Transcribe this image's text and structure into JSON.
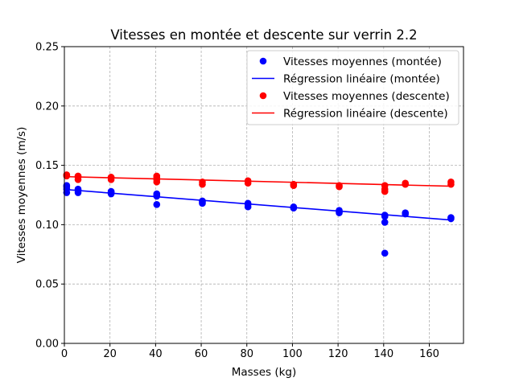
{
  "chart_data": {
    "type": "scatter",
    "title": "Vitesses en montée et descente sur verrin 2.2",
    "xlabel": "Masses (kg)",
    "ylabel": "Vitesses moyennes (m/s)",
    "xlim": [
      0,
      175
    ],
    "ylim": [
      0,
      0.25
    ],
    "xticks": [
      0,
      20,
      40,
      60,
      80,
      100,
      120,
      140,
      160
    ],
    "yticks": [
      0.0,
      0.05,
      0.1,
      0.15,
      0.2,
      0.25
    ],
    "xtick_labels": [
      "0",
      "20",
      "40",
      "60",
      "80",
      "100",
      "120",
      "140",
      "160"
    ],
    "ytick_labels": [
      "0.00",
      "0.05",
      "0.10",
      "0.15",
      "0.20",
      "0.25"
    ],
    "grid": true,
    "legend_position": "top-right",
    "series": [
      {
        "name": "Vitesses moyennes (montée)",
        "kind": "scatter",
        "color": "#0000ff",
        "points": [
          [
            1,
            0.127
          ],
          [
            1,
            0.13
          ],
          [
            1,
            0.132
          ],
          [
            1,
            0.133
          ],
          [
            6,
            0.127
          ],
          [
            6,
            0.129
          ],
          [
            6,
            0.13
          ],
          [
            20.5,
            0.126
          ],
          [
            20.5,
            0.127
          ],
          [
            20.5,
            0.128
          ],
          [
            40.5,
            0.117
          ],
          [
            40.5,
            0.124
          ],
          [
            40.5,
            0.125
          ],
          [
            40.5,
            0.126
          ],
          [
            60.5,
            0.118
          ],
          [
            60.5,
            0.119
          ],
          [
            60.5,
            0.12
          ],
          [
            80.5,
            0.115
          ],
          [
            80.5,
            0.117
          ],
          [
            80.5,
            0.118
          ],
          [
            100.5,
            0.114
          ],
          [
            100.5,
            0.115
          ],
          [
            120.5,
            0.11
          ],
          [
            120.5,
            0.111
          ],
          [
            120.5,
            0.112
          ],
          [
            140.5,
            0.076
          ],
          [
            140.5,
            0.102
          ],
          [
            140.5,
            0.107
          ],
          [
            140.5,
            0.108
          ],
          [
            149.5,
            0.109
          ],
          [
            149.5,
            0.11
          ],
          [
            169.5,
            0.105
          ],
          [
            169.5,
            0.106
          ]
        ]
      },
      {
        "name": "Régression linéaire (montée)",
        "kind": "line",
        "color": "#0000ff",
        "x": [
          0,
          170
        ],
        "y": [
          0.1297,
          0.1039
        ]
      },
      {
        "name": "Vitesses moyennes (descente)",
        "kind": "scatter",
        "color": "#ff0000",
        "points": [
          [
            1,
            0.141
          ],
          [
            1,
            0.142
          ],
          [
            6,
            0.138
          ],
          [
            6,
            0.14
          ],
          [
            6,
            0.141
          ],
          [
            20.5,
            0.138
          ],
          [
            20.5,
            0.14
          ],
          [
            40.5,
            0.136
          ],
          [
            40.5,
            0.138
          ],
          [
            40.5,
            0.14
          ],
          [
            40.5,
            0.141
          ],
          [
            60.5,
            0.134
          ],
          [
            60.5,
            0.136
          ],
          [
            80.5,
            0.135
          ],
          [
            80.5,
            0.137
          ],
          [
            100.5,
            0.133
          ],
          [
            100.5,
            0.134
          ],
          [
            120.5,
            0.132
          ],
          [
            120.5,
            0.133
          ],
          [
            140.5,
            0.128
          ],
          [
            140.5,
            0.13
          ],
          [
            140.5,
            0.133
          ],
          [
            149.5,
            0.134
          ],
          [
            149.5,
            0.135
          ],
          [
            169.5,
            0.134
          ],
          [
            169.5,
            0.136
          ]
        ]
      },
      {
        "name": "Régression linéaire (descente)",
        "kind": "line",
        "color": "#ff0000",
        "x": [
          0,
          170
        ],
        "y": [
          0.1405,
          0.1324
        ]
      }
    ]
  }
}
